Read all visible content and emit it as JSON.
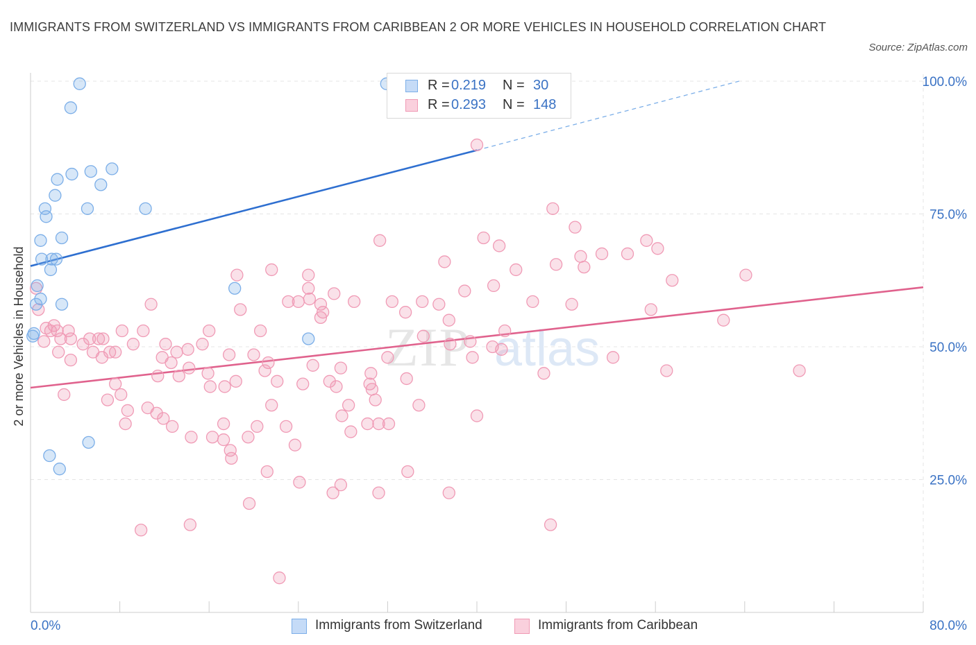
{
  "title": "IMMIGRANTS FROM SWITZERLAND VS IMMIGRANTS FROM CARIBBEAN 2 OR MORE VEHICLES IN HOUSEHOLD CORRELATION CHART",
  "source": "Source: ZipAtlas.com",
  "watermark": {
    "zip": "ZIP",
    "atlas": "atlas"
  },
  "legend_stats": [
    {
      "r_label": "R =",
      "r_value": "0.219",
      "n_label": "N =",
      "n_value": "30",
      "color": "#7baee8"
    },
    {
      "r_label": "R =",
      "r_value": "0.293",
      "n_label": "N =",
      "n_value": "148",
      "color": "#f09ab5"
    }
  ],
  "legend_bottom": [
    {
      "label": "Immigrants from Switzerland",
      "color": "#7baee8"
    },
    {
      "label": "Immigrants from Caribbean",
      "color": "#f09ab5"
    }
  ],
  "chart_data": {
    "type": "scatter",
    "title": "IMMIGRANTS FROM SWITZERLAND VS IMMIGRANTS FROM CARIBBEAN 2 OR MORE VEHICLES IN HOUSEHOLD CORRELATION CHART",
    "xlabel": "",
    "ylabel": "2 or more Vehicles in Household",
    "xlim": [
      0,
      80
    ],
    "ylim": [
      0,
      100
    ],
    "x_tick_labels": [
      "0.0%",
      "80.0%"
    ],
    "y_tick_labels": [
      "100.0%",
      "75.0%",
      "50.0%",
      "25.0%"
    ],
    "y_ticks": [
      100,
      75,
      50,
      25
    ],
    "grid": true,
    "legend_position": "top-center",
    "series": [
      {
        "name": "Immigrants from Switzerland",
        "color": "#7baee8",
        "trend": {
          "x": [
            0,
            40
          ],
          "y": [
            65.2,
            87.0
          ],
          "dashed_to": [
            63.5,
            100.0
          ]
        },
        "points": [
          [
            4.4,
            99.5
          ],
          [
            31.9,
            99.5
          ],
          [
            3.6,
            95.0
          ],
          [
            2.4,
            81.5
          ],
          [
            3.7,
            82.5
          ],
          [
            5.4,
            83.0
          ],
          [
            7.3,
            83.5
          ],
          [
            6.3,
            80.5
          ],
          [
            2.2,
            78.5
          ],
          [
            1.3,
            76.0
          ],
          [
            1.4,
            74.5
          ],
          [
            5.1,
            76.0
          ],
          [
            10.3,
            76.0
          ],
          [
            0.9,
            70.0
          ],
          [
            2.8,
            70.5
          ],
          [
            1.0,
            66.5
          ],
          [
            1.9,
            66.5
          ],
          [
            2.3,
            66.5
          ],
          [
            1.8,
            64.5
          ],
          [
            0.6,
            61.5
          ],
          [
            18.3,
            61.0
          ],
          [
            0.9,
            59.0
          ],
          [
            0.5,
            58.0
          ],
          [
            2.8,
            58.0
          ],
          [
            0.2,
            52.0
          ],
          [
            24.9,
            51.5
          ],
          [
            5.2,
            32.0
          ],
          [
            1.7,
            29.5
          ],
          [
            2.6,
            27.0
          ],
          [
            0.3,
            52.5
          ]
        ]
      },
      {
        "name": "Immigrants from Caribbean",
        "color": "#f09ab5",
        "trend": {
          "x": [
            0,
            80
          ],
          "y": [
            42.3,
            61.2
          ]
        },
        "points": [
          [
            40.0,
            88.0
          ],
          [
            46.8,
            76.0
          ],
          [
            48.8,
            72.5
          ],
          [
            31.3,
            70.0
          ],
          [
            40.6,
            70.5
          ],
          [
            42.0,
            69.0
          ],
          [
            55.2,
            70.0
          ],
          [
            56.2,
            68.5
          ],
          [
            49.3,
            67.0
          ],
          [
            51.2,
            67.5
          ],
          [
            53.5,
            67.5
          ],
          [
            37.1,
            66.0
          ],
          [
            43.5,
            64.5
          ],
          [
            47.1,
            65.5
          ],
          [
            49.6,
            65.0
          ],
          [
            21.6,
            64.5
          ],
          [
            18.5,
            63.5
          ],
          [
            24.9,
            63.5
          ],
          [
            64.1,
            63.5
          ],
          [
            57.5,
            62.5
          ],
          [
            41.5,
            61.5
          ],
          [
            38.9,
            60.5
          ],
          [
            24.9,
            61.0
          ],
          [
            27.2,
            60.0
          ],
          [
            25.0,
            59.0
          ],
          [
            32.4,
            58.5
          ],
          [
            35.1,
            58.5
          ],
          [
            24.0,
            58.5
          ],
          [
            23.1,
            58.5
          ],
          [
            29.0,
            58.5
          ],
          [
            45.0,
            58.5
          ],
          [
            36.6,
            58.0
          ],
          [
            26.0,
            58.0
          ],
          [
            48.5,
            58.0
          ],
          [
            10.8,
            58.0
          ],
          [
            18.8,
            57.0
          ],
          [
            26.2,
            56.5
          ],
          [
            55.6,
            57.0
          ],
          [
            33.6,
            56.5
          ],
          [
            26.0,
            55.5
          ],
          [
            62.1,
            55.0
          ],
          [
            37.5,
            55.0
          ],
          [
            2.1,
            54.0
          ],
          [
            1.4,
            53.5
          ],
          [
            1.8,
            53.0
          ],
          [
            2.4,
            53.0
          ],
          [
            3.4,
            53.0
          ],
          [
            8.2,
            53.0
          ],
          [
            10.1,
            53.0
          ],
          [
            16.0,
            53.0
          ],
          [
            20.6,
            53.0
          ],
          [
            42.5,
            53.0
          ],
          [
            35.2,
            52.0
          ],
          [
            2.7,
            51.5
          ],
          [
            3.6,
            51.5
          ],
          [
            5.3,
            51.5
          ],
          [
            6.1,
            51.5
          ],
          [
            6.5,
            51.5
          ],
          [
            37.6,
            50.5
          ],
          [
            39.4,
            51.0
          ],
          [
            1.2,
            51.0
          ],
          [
            4.7,
            50.5
          ],
          [
            9.2,
            50.5
          ],
          [
            12.1,
            50.5
          ],
          [
            15.4,
            50.5
          ],
          [
            41.4,
            50.0
          ],
          [
            42.2,
            49.5
          ],
          [
            14.1,
            49.5
          ],
          [
            5.6,
            49.0
          ],
          [
            2.5,
            49.0
          ],
          [
            7.1,
            49.0
          ],
          [
            7.6,
            49.0
          ],
          [
            13.1,
            49.0
          ],
          [
            11.8,
            48.0
          ],
          [
            17.8,
            48.5
          ],
          [
            20.0,
            48.5
          ],
          [
            32.0,
            48.0
          ],
          [
            39.6,
            48.0
          ],
          [
            52.2,
            48.0
          ],
          [
            6.4,
            48.0
          ],
          [
            3.6,
            47.5
          ],
          [
            21.3,
            47.0
          ],
          [
            12.6,
            47.0
          ],
          [
            25.3,
            46.5
          ],
          [
            14.2,
            46.0
          ],
          [
            21.0,
            45.5
          ],
          [
            27.8,
            46.0
          ],
          [
            57.0,
            45.5
          ],
          [
            68.9,
            45.5
          ],
          [
            46.0,
            45.0
          ],
          [
            30.5,
            45.0
          ],
          [
            11.4,
            44.5
          ],
          [
            15.9,
            45.0
          ],
          [
            13.3,
            44.5
          ],
          [
            33.7,
            44.0
          ],
          [
            22.1,
            43.5
          ],
          [
            24.4,
            43.0
          ],
          [
            18.4,
            43.5
          ],
          [
            26.8,
            43.5
          ],
          [
            7.6,
            43.0
          ],
          [
            30.4,
            43.0
          ],
          [
            16.1,
            42.5
          ],
          [
            17.4,
            42.5
          ],
          [
            27.4,
            42.5
          ],
          [
            30.6,
            42.0
          ],
          [
            3.0,
            41.0
          ],
          [
            8.1,
            41.0
          ],
          [
            6.9,
            40.0
          ],
          [
            30.9,
            40.0
          ],
          [
            21.6,
            39.0
          ],
          [
            28.5,
            39.0
          ],
          [
            34.8,
            39.0
          ],
          [
            10.5,
            38.5
          ],
          [
            8.7,
            38.0
          ],
          [
            11.3,
            37.5
          ],
          [
            27.9,
            37.0
          ],
          [
            40.0,
            37.0
          ],
          [
            11.9,
            36.5
          ],
          [
            8.5,
            35.5
          ],
          [
            17.3,
            35.5
          ],
          [
            22.9,
            35.0
          ],
          [
            32.1,
            35.5
          ],
          [
            30.2,
            35.5
          ],
          [
            31.2,
            35.5
          ],
          [
            20.3,
            35.0
          ],
          [
            12.7,
            35.0
          ],
          [
            28.7,
            34.0
          ],
          [
            14.4,
            33.0
          ],
          [
            16.3,
            33.0
          ],
          [
            19.5,
            33.0
          ],
          [
            17.3,
            32.5
          ],
          [
            23.7,
            31.5
          ],
          [
            17.9,
            30.5
          ],
          [
            18.0,
            29.0
          ],
          [
            21.2,
            26.5
          ],
          [
            33.8,
            26.5
          ],
          [
            24.1,
            24.5
          ],
          [
            27.8,
            24.0
          ],
          [
            27.1,
            22.5
          ],
          [
            31.2,
            22.5
          ],
          [
            37.5,
            22.5
          ],
          [
            19.6,
            20.5
          ],
          [
            14.3,
            16.5
          ],
          [
            9.9,
            15.5
          ],
          [
            46.6,
            16.5
          ],
          [
            22.3,
            6.5
          ],
          [
            0.5,
            61.0
          ],
          [
            0.7,
            57.0
          ]
        ]
      }
    ]
  }
}
